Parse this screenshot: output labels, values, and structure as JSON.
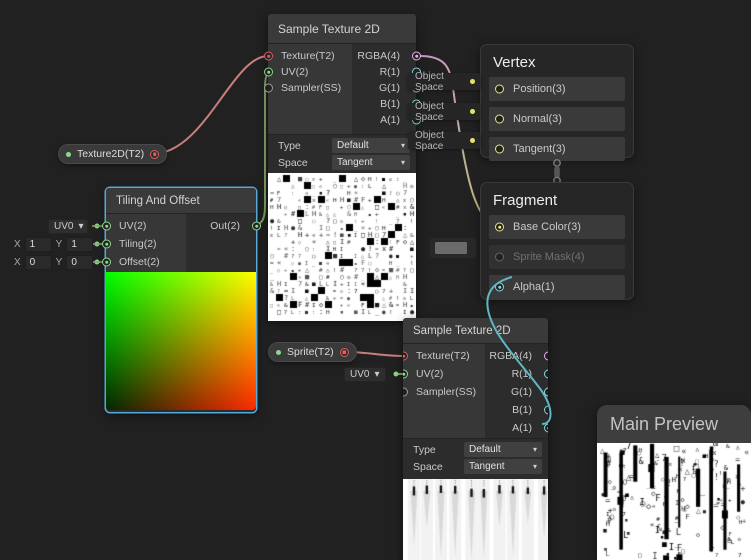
{
  "colors": {
    "background": "#212121",
    "texture2d_port": "#DB5E5E",
    "vector1_port": "#84D6DE",
    "vector2_port": "#8CD88C",
    "vector3_port": "#E6E68A",
    "vector4_port": "#EDA9ED",
    "sampler_port": "#9A9A9A",
    "disabled_port": "#6E5E6A",
    "wire_texture": "#C97F7F",
    "wire_vector2": "#86A96B",
    "wire_vector1": "#5FB7C4",
    "wire_vector3": "#DFDF7A",
    "wire_disabled": "#8A7484",
    "dot_green": "#8CD88C",
    "dot_yellow": "#E2E26A",
    "selection": "#56A8D6"
  },
  "ui": {
    "dropdown_arrow": "▾"
  },
  "nodes": {
    "top": {
      "title": "Sample Texture 2D",
      "inputs": [
        "Texture(T2)",
        "UV(2)",
        "Sampler(SS)"
      ],
      "outputs": [
        "RGBA(4)",
        "R(1)",
        "G(1)",
        "B(1)",
        "A(1)"
      ],
      "type_label": "Type",
      "type_value": "Default",
      "space_label": "Space",
      "space_value": "Tangent"
    },
    "bottom": {
      "title": "Sample Texture 2D",
      "inputs": [
        "Texture(T2)",
        "UV(2)",
        "Sampler(SS)"
      ],
      "outputs": [
        "RGBA(4)",
        "R(1)",
        "G(1)",
        "B(1)",
        "A(1)"
      ],
      "type_label": "Type",
      "type_value": "Default",
      "space_label": "Space",
      "space_value": "Tangent"
    },
    "tiling": {
      "title": "Tiling And Offset",
      "inputs": [
        "UV(2)",
        "Tiling(2)",
        "Offset(2)"
      ],
      "output": "Out(2)"
    },
    "vertex": {
      "title": "Vertex",
      "rows": [
        "Position(3)",
        "Normal(3)",
        "Tangent(3)"
      ],
      "space_label": "Object Space"
    },
    "fragment": {
      "title": "Fragment",
      "rows": [
        "Base Color(3)",
        "Sprite Mask(4)",
        "Alpha(1)"
      ]
    }
  },
  "properties": {
    "texture_pill": "Texture2D(T2)",
    "sprite_pill": "Sprite(T2)"
  },
  "widgets": {
    "uv_channel": "UV0",
    "x_label": "X",
    "y_label": "Y",
    "tiling_x": "1",
    "tiling_y": "1",
    "offset_x": "0",
    "offset_y": "0"
  },
  "main_preview": {
    "title": "Main Preview"
  }
}
